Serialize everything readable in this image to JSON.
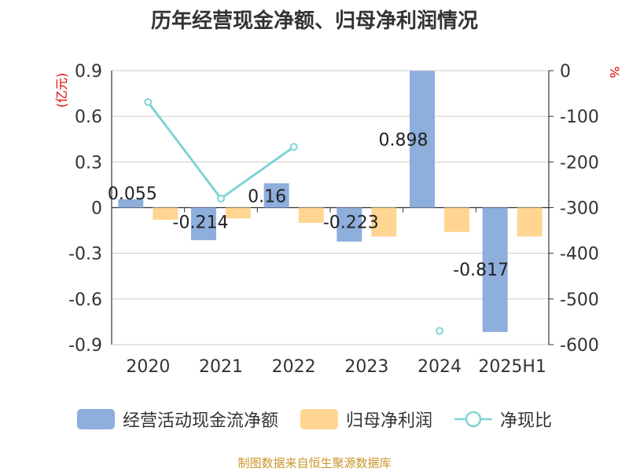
{
  "chart_data": {
    "type": "bar",
    "title": "历年经营现金净额、归母净利润情况",
    "left_unit": "(亿元)",
    "right_unit": "%",
    "categories": [
      "2020",
      "2021",
      "2022",
      "2023",
      "2024",
      "2025H1"
    ],
    "left_axis": {
      "ylim": [
        -0.9,
        0.9
      ],
      "ticks": [
        "0.9",
        "0.6",
        "0.3",
        "0",
        "-0.3",
        "-0.6",
        "-0.9"
      ]
    },
    "right_axis": {
      "ylim": [
        -600,
        0
      ],
      "ticks": [
        "0",
        "-100",
        "-200",
        "-300",
        "-400",
        "-500",
        "-600"
      ]
    },
    "series": [
      {
        "name": "经营活动现金流净额",
        "type": "bar",
        "axis": "left",
        "color": "#8eaedc",
        "values": [
          0.055,
          -0.214,
          0.16,
          -0.223,
          0.898,
          -0.817
        ],
        "labels": [
          "0.055",
          "-0.214",
          "0.16",
          "-0.223",
          "0.898",
          "-0.817"
        ]
      },
      {
        "name": "归母净利润",
        "type": "bar",
        "axis": "left",
        "color": "#ffd591",
        "values": [
          -0.08,
          -0.07,
          -0.1,
          -0.19,
          -0.16,
          -0.19
        ]
      },
      {
        "name": "净现比",
        "type": "line",
        "axis": "right",
        "color": "#7fd3d6",
        "values": [
          -69,
          -280,
          -167,
          null,
          -570,
          null
        ]
      }
    ],
    "grid": true,
    "legend_position": "bottom"
  },
  "source_note": "制图数据来自恒生聚源数据库",
  "colors": {
    "grid": "#cccccc",
    "axis": "#333333",
    "tick_text": "#333333",
    "unit_text": "#e00000",
    "source": "#c9962b"
  }
}
